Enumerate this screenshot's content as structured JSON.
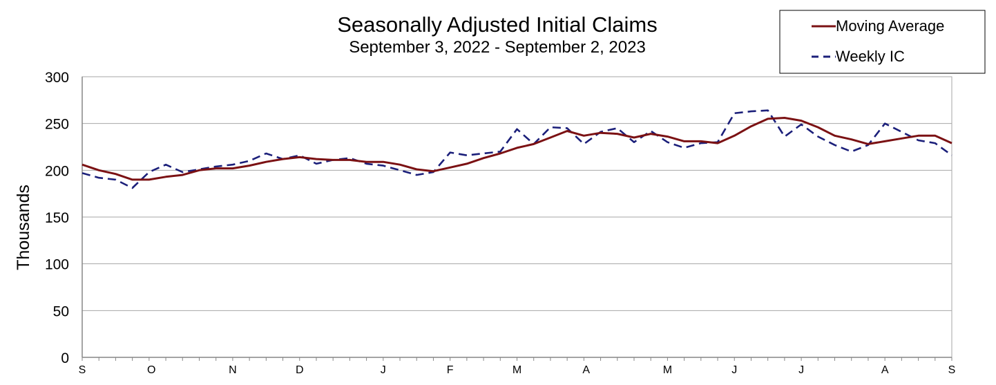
{
  "chart_data": {
    "type": "line",
    "title": "Seasonally Adjusted Initial Claims",
    "subtitle": "September 3, 2022 - September 2, 2023",
    "xlabel": "",
    "ylabel": "Thousands",
    "ylim": [
      0,
      300
    ],
    "yticks": [
      0,
      50,
      100,
      150,
      200,
      250,
      300
    ],
    "x_month_labels": [
      "S",
      "O",
      "N",
      "D",
      "J",
      "F",
      "M",
      "A",
      "M",
      "J",
      "J",
      "A",
      "S"
    ],
    "x_month_label_weeks": [
      0,
      4.14,
      9,
      13,
      18,
      22,
      26,
      30.14,
      35,
      39,
      43,
      48,
      52
    ],
    "grid": true,
    "legend_position": "top-right",
    "series": [
      {
        "name": "Moving Average",
        "color": "#7b1113",
        "style": "solid",
        "values": [
          206,
          200,
          196,
          190,
          190,
          193,
          195,
          200,
          202,
          202,
          205,
          209,
          212,
          214,
          212,
          211,
          211,
          209,
          209,
          206,
          201,
          199,
          203,
          207,
          213,
          218,
          224,
          228,
          235,
          242,
          237,
          240,
          239,
          235,
          239,
          236,
          231,
          231,
          229,
          237,
          247,
          255,
          256,
          253,
          246,
          237,
          233,
          228,
          231,
          234,
          237,
          237,
          229
        ]
      },
      {
        "name": "Weekly IC",
        "color": "#1b1f7a",
        "style": "dashed",
        "values": [
          197,
          192,
          190,
          181,
          198,
          206,
          198,
          201,
          204,
          206,
          210,
          218,
          212,
          216,
          207,
          211,
          213,
          207,
          205,
          200,
          195,
          198,
          219,
          216,
          218,
          220,
          244,
          228,
          246,
          245,
          228,
          241,
          245,
          230,
          242,
          230,
          224,
          229,
          230,
          261,
          263,
          264,
          236,
          249,
          236,
          227,
          220,
          227,
          250,
          241,
          232,
          229,
          216
        ]
      }
    ]
  }
}
